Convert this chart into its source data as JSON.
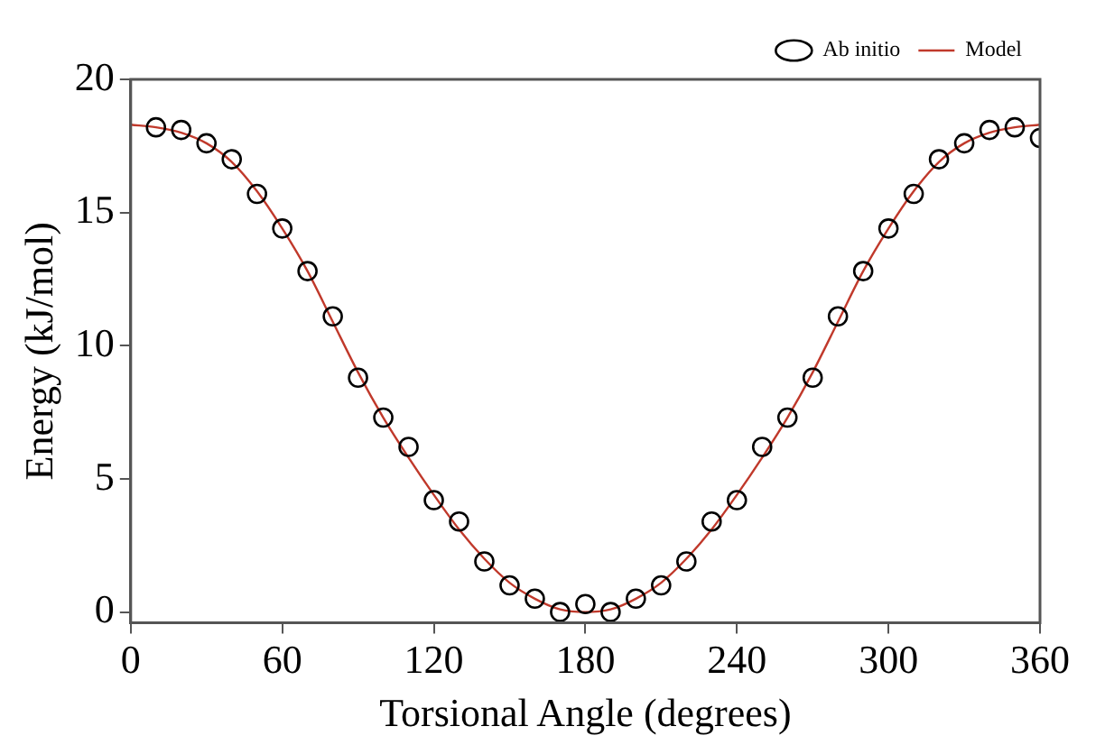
{
  "chart_data": {
    "type": "scatter",
    "xlabel": "Torsional Angle (degrees)",
    "ylabel": "Energy (kJ/mol)",
    "xlim": [
      0,
      360
    ],
    "xticks": [
      0,
      60,
      120,
      180,
      240,
      300,
      360
    ],
    "ylim": [
      -0.4,
      20
    ],
    "yticks": [
      0,
      5,
      10,
      15,
      20
    ],
    "grid": false,
    "legend": "top right",
    "marker": "circle",
    "series": [
      {
        "name": "Ab initio",
        "type": "scatter",
        "color": "#000000",
        "x": [
          10,
          20,
          30,
          40,
          50,
          60,
          70,
          80,
          90,
          100,
          110,
          120,
          130,
          140,
          150,
          160,
          170,
          180,
          190,
          200,
          210,
          220,
          230,
          240,
          250,
          260,
          270,
          280,
          290,
          300,
          310,
          320,
          330,
          340,
          350,
          360
        ],
        "values": [
          18.2,
          18.1,
          17.6,
          17.0,
          15.7,
          14.4,
          12.8,
          11.1,
          8.8,
          7.3,
          6.2,
          4.2,
          3.4,
          1.9,
          1.0,
          0.5,
          0.0,
          0.3,
          0.0,
          0.5,
          1.0,
          1.9,
          3.4,
          4.2,
          6.2,
          7.3,
          8.8,
          11.1,
          12.8,
          14.4,
          15.7,
          17.0,
          17.6,
          18.1,
          18.2,
          17.8
        ]
      },
      {
        "name": "Model",
        "type": "line",
        "color": "#c0392b",
        "marker": "none",
        "line_style": "solid",
        "x": [
          0,
          10,
          20,
          30,
          40,
          50,
          60,
          70,
          80,
          90,
          100,
          110,
          120,
          130,
          140,
          150,
          160,
          170,
          180,
          190,
          200,
          210,
          220,
          230,
          240,
          250,
          260,
          270,
          280,
          290,
          300,
          310,
          320,
          330,
          340,
          350,
          360
        ],
        "values": [
          18.3,
          18.2,
          18.0,
          17.6,
          16.9,
          15.8,
          14.4,
          12.8,
          10.9,
          9.0,
          7.3,
          5.8,
          4.4,
          3.1,
          2.0,
          1.1,
          0.5,
          0.1,
          0.0,
          0.1,
          0.5,
          1.1,
          2.0,
          3.1,
          4.4,
          5.8,
          7.3,
          9.0,
          10.9,
          12.8,
          14.4,
          15.8,
          16.9,
          17.6,
          18.0,
          18.2,
          18.3
        ]
      }
    ]
  }
}
